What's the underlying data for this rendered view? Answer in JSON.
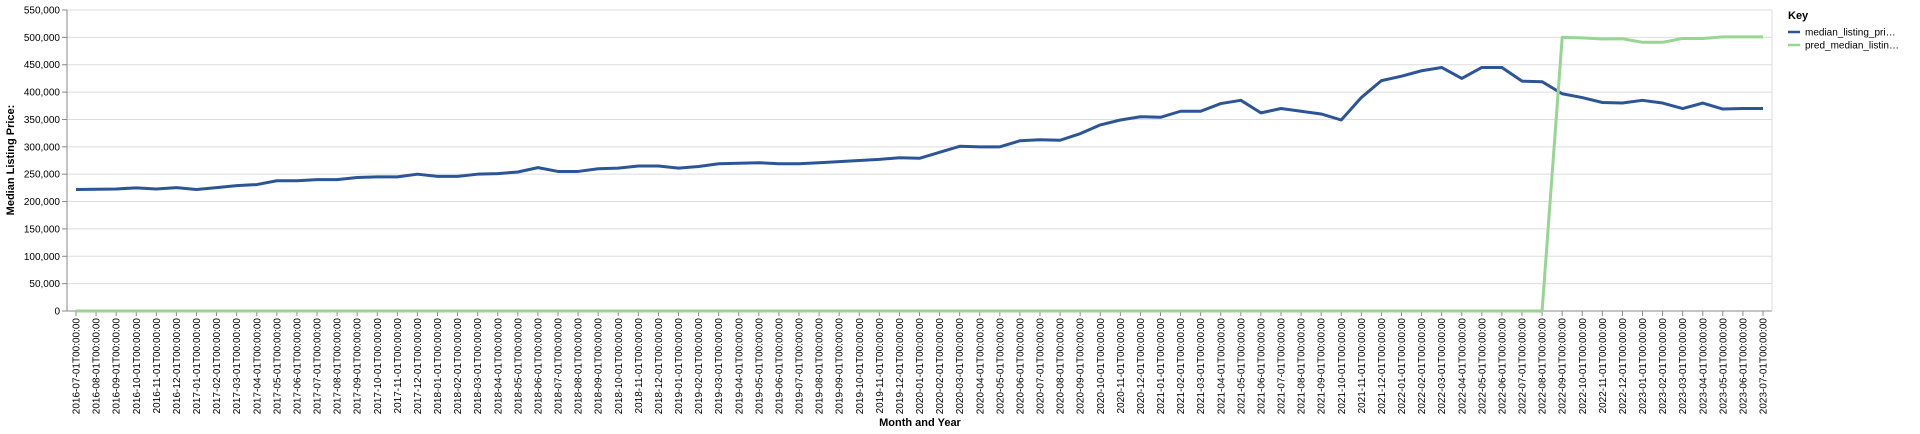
{
  "chart_data": {
    "type": "line",
    "x_label": "Month and Year",
    "y_label": "Median Listing Price:",
    "legend_title": "Key",
    "categories": [
      "2016-07-01T00:00:00",
      "2016-08-01T00:00:00",
      "2016-09-01T00:00:00",
      "2016-10-01T00:00:00",
      "2016-11-01T00:00:00",
      "2016-12-01T00:00:00",
      "2017-01-01T00:00:00",
      "2017-02-01T00:00:00",
      "2017-03-01T00:00:00",
      "2017-04-01T00:00:00",
      "2017-05-01T00:00:00",
      "2017-06-01T00:00:00",
      "2017-07-01T00:00:00",
      "2017-08-01T00:00:00",
      "2017-09-01T00:00:00",
      "2017-10-01T00:00:00",
      "2017-11-01T00:00:00",
      "2017-12-01T00:00:00",
      "2018-01-01T00:00:00",
      "2018-02-01T00:00:00",
      "2018-03-01T00:00:00",
      "2018-04-01T00:00:00",
      "2018-05-01T00:00:00",
      "2018-06-01T00:00:00",
      "2018-07-01T00:00:00",
      "2018-08-01T00:00:00",
      "2018-09-01T00:00:00",
      "2018-10-01T00:00:00",
      "2018-11-01T00:00:00",
      "2018-12-01T00:00:00",
      "2019-01-01T00:00:00",
      "2019-02-01T00:00:00",
      "2019-03-01T00:00:00",
      "2019-04-01T00:00:00",
      "2019-05-01T00:00:00",
      "2019-06-01T00:00:00",
      "2019-07-01T00:00:00",
      "2019-08-01T00:00:00",
      "2019-09-01T00:00:00",
      "2019-10-01T00:00:00",
      "2019-11-01T00:00:00",
      "2019-12-01T00:00:00",
      "2020-01-01T00:00:00",
      "2020-02-01T00:00:00",
      "2020-03-01T00:00:00",
      "2020-04-01T00:00:00",
      "2020-05-01T00:00:00",
      "2020-06-01T00:00:00",
      "2020-07-01T00:00:00",
      "2020-08-01T00:00:00",
      "2020-09-01T00:00:00",
      "2020-10-01T00:00:00",
      "2020-11-01T00:00:00",
      "2020-12-01T00:00:00",
      "2021-01-01T00:00:00",
      "2021-02-01T00:00:00",
      "2021-03-01T00:00:00",
      "2021-04-01T00:00:00",
      "2021-05-01T00:00:00",
      "2021-06-01T00:00:00",
      "2021-07-01T00:00:00",
      "2021-08-01T00:00:00",
      "2021-09-01T00:00:00",
      "2021-10-01T00:00:00",
      "2021-11-01T00:00:00",
      "2021-12-01T00:00:00",
      "2022-01-01T00:00:00",
      "2022-02-01T00:00:00",
      "2022-03-01T00:00:00",
      "2022-04-01T00:00:00",
      "2022-05-01T00:00:00",
      "2022-06-01T00:00:00",
      "2022-07-01T00:00:00",
      "2022-08-01T00:00:00",
      "2022-09-01T00:00:00",
      "2022-10-01T00:00:00",
      "2022-11-01T00:00:00",
      "2022-12-01T00:00:00",
      "2023-01-01T00:00:00",
      "2023-02-01T00:00:00",
      "2023-03-01T00:00:00",
      "2023-04-01T00:00:00",
      "2023-05-01T00:00:00",
      "2023-06-01T00:00:00",
      "2023-07-01T00:00:00"
    ],
    "series": [
      {
        "name": "median_listing_pri…",
        "color": "#2c5597",
        "values": [
          222000,
          222500,
          223000,
          225000,
          223000,
          225500,
          222000,
          225500,
          229000,
          231000,
          238000,
          238000,
          240000,
          240000,
          244000,
          245000,
          245000,
          250000,
          246000,
          246000,
          250000,
          251000,
          254000,
          262000,
          255000,
          255000,
          260000,
          261000,
          265000,
          265000,
          261000,
          264000,
          269000,
          270000,
          271000,
          269000,
          269000,
          271000,
          273000,
          275000,
          277000,
          280000,
          279000,
          290000,
          301000,
          300000,
          300000,
          311000,
          313000,
          312000,
          324000,
          340000,
          349000,
          355000,
          354000,
          365000,
          365000,
          379000,
          385000,
          362000,
          370000,
          365000,
          360000,
          349000,
          390000,
          421000,
          429000,
          439000,
          445000,
          425000,
          445000,
          445000,
          420000,
          419000,
          397000,
          390000,
          381000,
          380000,
          385000,
          380000,
          370000,
          380000,
          369000,
          370000,
          370000
        ]
      },
      {
        "name": "pred_median_listin…",
        "color": "#98d593",
        "values": [
          0,
          0,
          0,
          0,
          0,
          0,
          0,
          0,
          0,
          0,
          0,
          0,
          0,
          0,
          0,
          0,
          0,
          0,
          0,
          0,
          0,
          0,
          0,
          0,
          0,
          0,
          0,
          0,
          0,
          0,
          0,
          0,
          0,
          0,
          0,
          0,
          0,
          0,
          0,
          0,
          0,
          0,
          0,
          0,
          0,
          0,
          0,
          0,
          0,
          0,
          0,
          0,
          0,
          0,
          0,
          0,
          0,
          0,
          0,
          0,
          0,
          0,
          0,
          0,
          0,
          0,
          0,
          0,
          0,
          0,
          0,
          0,
          0,
          0,
          500000,
          499000,
          497000,
          497500,
          491000,
          491000,
          498000,
          498000,
          501000,
          501000,
          501000
        ]
      }
    ],
    "ylim": [
      0,
      550000
    ],
    "yticks": [
      0,
      {
        "value": 50000,
        "label": "50,000"
      },
      {
        "value": 100000,
        "label": "100,000"
      },
      {
        "value": 150000,
        "label": "150,000"
      },
      {
        "value": 200000,
        "label": "200,000"
      },
      {
        "value": 250000,
        "label": "250,000"
      },
      {
        "value": 300000,
        "label": "300,000"
      },
      {
        "value": 350000,
        "label": "350,000"
      },
      {
        "value": 400000,
        "label": "400,000"
      },
      {
        "value": 450000,
        "label": "450,000"
      },
      {
        "value": 500000,
        "label": "500,000"
      },
      {
        "value": 550000,
        "label": "550,000"
      }
    ],
    "grid": true
  }
}
